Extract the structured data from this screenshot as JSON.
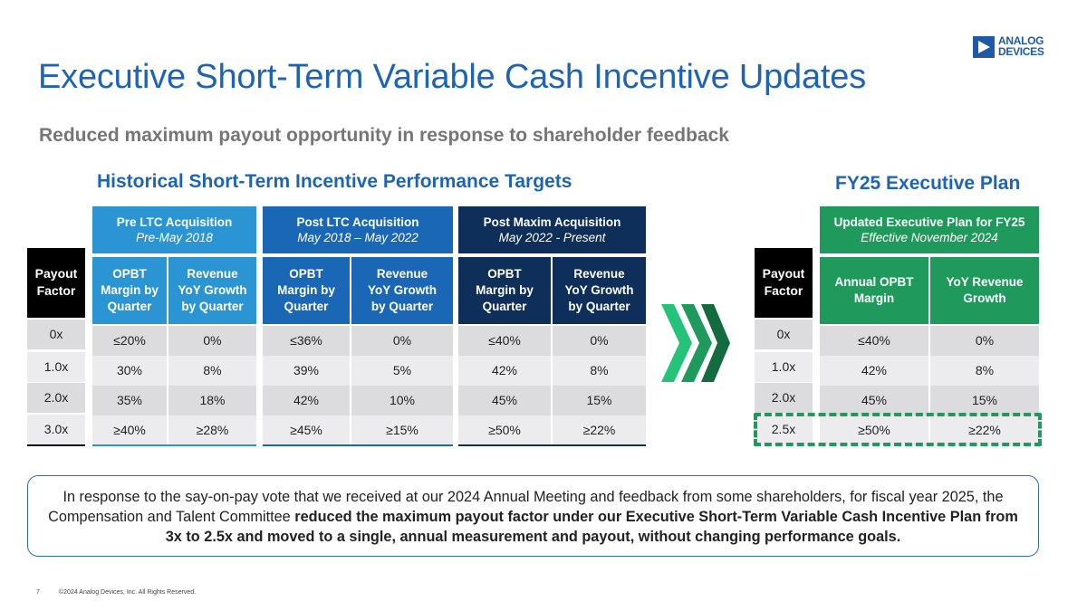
{
  "logo": {
    "text": "ANALOG\nDEVICES",
    "color": "#1f5aa6"
  },
  "title": "Executive Short-Term Variable Cash Incentive Updates",
  "subtitle": "Reduced maximum payout opportunity in response to shareholder feedback",
  "historical": {
    "heading": "Historical Short-Term Incentive Performance Targets",
    "payout_header": "Payout\nFactor",
    "payout_factors": [
      "0x",
      "1.0x",
      "2.0x",
      "3.0x"
    ],
    "groups": [
      {
        "title": "Pre LTC Acquisition",
        "period": "Pre-May 2018",
        "color": "#2b95d3",
        "columns": [
          "OPBT\nMargin by\nQuarter",
          "Revenue\nYoY Growth\nby Quarter"
        ],
        "rows": [
          [
            "≤20%",
            "0%"
          ],
          [
            "30%",
            "8%"
          ],
          [
            "35%",
            "18%"
          ],
          [
            "≥40%",
            "≥28%"
          ]
        ]
      },
      {
        "title": "Post LTC Acquisition",
        "period": "May 2018 – May 2022",
        "color": "#1a67b5",
        "columns": [
          "OPBT\nMargin by\nQuarter",
          "Revenue\nYoY Growth\nby Quarter"
        ],
        "rows": [
          [
            "≤36%",
            "0%"
          ],
          [
            "39%",
            "5%"
          ],
          [
            "42%",
            "10%"
          ],
          [
            "≥45%",
            "≥15%"
          ]
        ]
      },
      {
        "title": "Post Maxim Acquisition",
        "period": "May 2022 - Present",
        "color": "#0e2f5a",
        "columns": [
          "OPBT\nMargin by\nQuarter",
          "Revenue\nYoY Growth\nby Quarter"
        ],
        "rows": [
          [
            "≤40%",
            "0%"
          ],
          [
            "42%",
            "8%"
          ],
          [
            "45%",
            "15%"
          ],
          [
            "≥50%",
            "≥22%"
          ]
        ]
      }
    ]
  },
  "fy25": {
    "heading": "FY25 Executive Plan",
    "payout_header": "Payout\nFactor",
    "payout_factors": [
      "0x",
      "1.0x",
      "2.0x",
      "2.5x"
    ],
    "group": {
      "title": "Updated Executive Plan for FY25",
      "period": "Effective November 2024",
      "color": "#1f9a5c",
      "columns": [
        "Annual OPBT\nMargin",
        "YoY Revenue\nGrowth"
      ],
      "rows": [
        [
          "≤40%",
          "0%"
        ],
        [
          "42%",
          "8%"
        ],
        [
          "45%",
          "15%"
        ],
        [
          "≥50%",
          "≥22%"
        ]
      ]
    }
  },
  "note": {
    "plain": "In response to the say-on-pay vote that we received at our 2024 Annual Meeting and feedback from some shareholders, for fiscal year 2025, the Compensation and Talent Committee ",
    "bold": "reduced the maximum payout factor under our Executive Short-Term Variable Cash Incentive Plan from 3x to 2.5x and moved to a single, annual measurement and payout, without changing performance goals."
  },
  "footer": {
    "page_number": "7",
    "copyright": "©2024 Analog Devices, Inc. All Rights Reserved."
  }
}
